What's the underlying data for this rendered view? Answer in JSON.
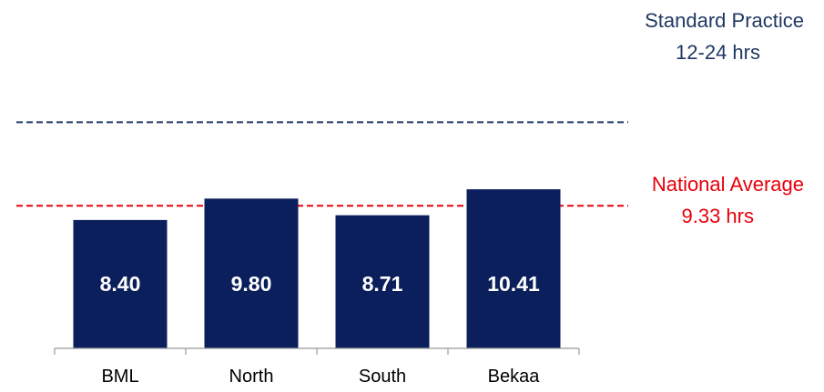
{
  "chart_data": {
    "type": "bar",
    "categories": [
      "BML",
      "North",
      "South",
      "Bekaa"
    ],
    "values": [
      8.4,
      9.8,
      8.71,
      10.41
    ],
    "data_labels": [
      "8.40",
      "9.80",
      "8.71",
      "10.41"
    ],
    "bar_color": "#0b1f5c",
    "title": "",
    "xlabel": "",
    "ylabel": "",
    "grid": false,
    "reference_lines": [
      {
        "value": 14.8,
        "label_line1": "Standard Practice",
        "label_line2": "12-24 hrs",
        "color": "#1f3864"
      },
      {
        "value": 9.33,
        "label_line1": "National Average",
        "label_line2": "9.33 hrs",
        "color": "#e8000b"
      }
    ]
  }
}
